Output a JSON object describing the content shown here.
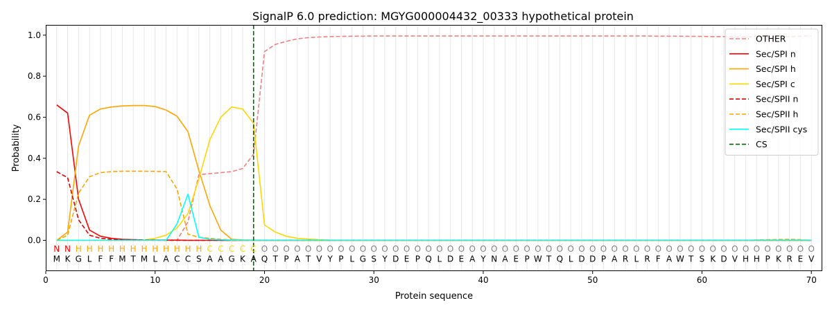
{
  "chart_data": {
    "type": "line",
    "title": "SignalP 6.0 prediction: MGYG000004432_00333 hypothetical protein",
    "xlabel": "Protein sequence",
    "ylabel": "Probability",
    "xlim": [
      0,
      71
    ],
    "ylim": [
      -0.15,
      1.05
    ],
    "x_ticks": [
      0,
      10,
      20,
      30,
      40,
      50,
      60,
      70
    ],
    "y_ticks": [
      0.0,
      0.2,
      0.4,
      0.6,
      0.8,
      1.0
    ],
    "x_tick_labels": [
      "0",
      "10",
      "20",
      "30",
      "40",
      "50",
      "60",
      "70"
    ],
    "y_tick_labels": [
      "0.0",
      "0.2",
      "0.4",
      "0.6",
      "0.8",
      "1.0"
    ],
    "grid": "vertical lines at every residue position",
    "legend_position": "top-right",
    "sequence": [
      "M",
      "K",
      "G",
      "L",
      "F",
      "F",
      "M",
      "T",
      "M",
      "L",
      "A",
      "C",
      "C",
      "S",
      "A",
      "A",
      "G",
      "K",
      "A",
      "Q",
      "T",
      "P",
      "A",
      "T",
      "V",
      "Y",
      "P",
      "L",
      "G",
      "S",
      "Y",
      "D",
      "E",
      "P",
      "Q",
      "L",
      "D",
      "E",
      "A",
      "Y",
      "N",
      "A",
      "E",
      "P",
      "W",
      "T",
      "Q",
      "L",
      "D",
      "D",
      "P",
      "A",
      "R",
      "L",
      "R",
      "F",
      "A",
      "W",
      "T",
      "S",
      "K",
      "D",
      "V",
      "H",
      "H",
      "P",
      "K",
      "R",
      "E",
      "V"
    ],
    "labels": [
      "N",
      "N",
      "H",
      "H",
      "H",
      "H",
      "H",
      "H",
      "H",
      "H",
      "H",
      "H",
      "H",
      "H",
      "C",
      "C",
      "C",
      "C",
      "C",
      "O",
      "O",
      "O",
      "O",
      "O",
      "O",
      "O",
      "O",
      "O",
      "O",
      "O",
      "O",
      "O",
      "O",
      "O",
      "O",
      "O",
      "O",
      "O",
      "O",
      "O",
      "O",
      "O",
      "O",
      "O",
      "O",
      "O",
      "O",
      "O",
      "O",
      "O",
      "O",
      "O",
      "O",
      "O",
      "O",
      "O",
      "O",
      "O",
      "O",
      "O",
      "O",
      "O",
      "O",
      "O",
      "O",
      "O",
      "O",
      "O",
      "O",
      "O"
    ],
    "label_colors": {
      "N": "#ff0000",
      "H": "#ffa500",
      "C": "#ffd700",
      "O": "#808080"
    },
    "cs_position": 19,
    "series": [
      {
        "name": "OTHER",
        "color": "#f08080",
        "dash": "dashed",
        "values": [
          0.0,
          0.0,
          0.0,
          0.0,
          0.0,
          0.0,
          0.0,
          0.0,
          0.0,
          0.0,
          0.0,
          0.0,
          0.09,
          0.32,
          0.325,
          0.33,
          0.335,
          0.35,
          0.42,
          0.92,
          0.955,
          0.97,
          0.982,
          0.988,
          0.991,
          0.993,
          0.994,
          0.995,
          0.995,
          0.996,
          0.996,
          0.996,
          0.996,
          0.996,
          0.996,
          0.996,
          0.996,
          0.996,
          0.996,
          0.996,
          0.996,
          0.996,
          0.996,
          0.996,
          0.996,
          0.996,
          0.996,
          0.996,
          0.996,
          0.996,
          0.996,
          0.996,
          0.996,
          0.996,
          0.996,
          0.995,
          0.995,
          0.995,
          0.994,
          0.994,
          0.993,
          0.993,
          0.992,
          0.992,
          0.991,
          0.991,
          0.991,
          0.993,
          0.995,
          0.996
        ]
      },
      {
        "name": "Sec/SPI n",
        "color": "#ff0000",
        "dash": "solid",
        "values": [
          0.66,
          0.62,
          0.2,
          0.05,
          0.02,
          0.01,
          0.005,
          0.003,
          0.002,
          0.001,
          0.001,
          0.001,
          0.0,
          0.0,
          0.0,
          0.0,
          0.0,
          0.0,
          0.0,
          0.0,
          0.0,
          0.0,
          0.0,
          0.0,
          0.0,
          0.0,
          0.0,
          0.0,
          0.0,
          0.0,
          0.0,
          0.0,
          0.0,
          0.0,
          0.0,
          0.0,
          0.0,
          0.0,
          0.0,
          0.0,
          0.0,
          0.0,
          0.0,
          0.0,
          0.0,
          0.0,
          0.0,
          0.0,
          0.0,
          0.0,
          0.0,
          0.0,
          0.0,
          0.0,
          0.0,
          0.0,
          0.0,
          0.0,
          0.0,
          0.0,
          0.0,
          0.0,
          0.0,
          0.0,
          0.0,
          0.0,
          0.0,
          0.0,
          0.0,
          0.0
        ]
      },
      {
        "name": "Sec/SPI h",
        "color": "#ffa500",
        "dash": "solid",
        "values": [
          0.0,
          0.04,
          0.46,
          0.61,
          0.64,
          0.65,
          0.655,
          0.657,
          0.657,
          0.652,
          0.635,
          0.605,
          0.53,
          0.34,
          0.17,
          0.05,
          0.005,
          0.002,
          0.001,
          0.0,
          0.0,
          0.0,
          0.0,
          0.0,
          0.0,
          0.0,
          0.0,
          0.0,
          0.0,
          0.0,
          0.0,
          0.0,
          0.0,
          0.0,
          0.0,
          0.0,
          0.0,
          0.0,
          0.0,
          0.0,
          0.0,
          0.0,
          0.0,
          0.0,
          0.0,
          0.0,
          0.0,
          0.0,
          0.0,
          0.0,
          0.0,
          0.0,
          0.0,
          0.0,
          0.0,
          0.0,
          0.0,
          0.0,
          0.0,
          0.0,
          0.0,
          0.0,
          0.0,
          0.0,
          0.0,
          0.0,
          0.0,
          0.0,
          0.0,
          0.0
        ]
      },
      {
        "name": "Sec/SPI c",
        "color": "#ffd700",
        "dash": "solid",
        "values": [
          0.0,
          0.0,
          0.0,
          0.0,
          0.0,
          0.0,
          0.0,
          0.0,
          0.002,
          0.01,
          0.025,
          0.06,
          0.13,
          0.3,
          0.49,
          0.6,
          0.65,
          0.64,
          0.57,
          0.075,
          0.04,
          0.02,
          0.01,
          0.006,
          0.003,
          0.001,
          0.0,
          0.0,
          0.0,
          0.0,
          0.0,
          0.0,
          0.0,
          0.0,
          0.0,
          0.0,
          0.0,
          0.0,
          0.0,
          0.0,
          0.0,
          0.0,
          0.0,
          0.0,
          0.0,
          0.0,
          0.0,
          0.0,
          0.0,
          0.0,
          0.0,
          0.0,
          0.0,
          0.0,
          0.0,
          0.0,
          0.0,
          0.0,
          0.0,
          0.0,
          0.0,
          0.0,
          0.0,
          0.0,
          0.0,
          0.0,
          0.0,
          0.0,
          0.0,
          0.0
        ]
      },
      {
        "name": "Sec/SPII n",
        "color": "#dd0000",
        "dash": "dashed",
        "values": [
          0.335,
          0.305,
          0.1,
          0.025,
          0.01,
          0.005,
          0.003,
          0.002,
          0.001,
          0.001,
          0.0,
          0.0,
          0.0,
          0.0,
          0.0,
          0.0,
          0.0,
          0.0,
          0.0,
          0.0,
          0.0,
          0.0,
          0.0,
          0.0,
          0.0,
          0.0,
          0.0,
          0.0,
          0.0,
          0.0,
          0.0,
          0.0,
          0.0,
          0.0,
          0.0,
          0.0,
          0.0,
          0.0,
          0.0,
          0.0,
          0.0,
          0.0,
          0.0,
          0.0,
          0.0,
          0.0,
          0.0,
          0.0,
          0.0,
          0.0,
          0.0,
          0.0,
          0.0,
          0.0,
          0.0,
          0.0,
          0.0,
          0.0,
          0.0,
          0.0,
          0.0,
          0.0,
          0.0,
          0.0,
          0.0,
          0.0,
          0.0,
          0.0,
          0.0,
          0.0
        ]
      },
      {
        "name": "Sec/SPII h",
        "color": "#ffa500",
        "dash": "dashed",
        "values": [
          0.0,
          0.025,
          0.23,
          0.31,
          0.33,
          0.335,
          0.337,
          0.337,
          0.337,
          0.336,
          0.335,
          0.25,
          0.03,
          0.015,
          0.01,
          0.005,
          0.002,
          0.001,
          0.0,
          0.0,
          0.0,
          0.0,
          0.0,
          0.0,
          0.0,
          0.0,
          0.0,
          0.0,
          0.0,
          0.0,
          0.0,
          0.0,
          0.0,
          0.0,
          0.0,
          0.0,
          0.0,
          0.0,
          0.0,
          0.0,
          0.0,
          0.0,
          0.0,
          0.0,
          0.0,
          0.0,
          0.0,
          0.0,
          0.0,
          0.0,
          0.0,
          0.0,
          0.0,
          0.0,
          0.0,
          0.0,
          0.0,
          0.0,
          0.0,
          0.0,
          0.0,
          0.0,
          0.0,
          0.0,
          0.002,
          0.003,
          0.004,
          0.005,
          0.003,
          0.0
        ]
      },
      {
        "name": "Sec/SPII cys",
        "color": "#00ffff",
        "dash": "solid",
        "values": [
          0.0,
          0.0,
          0.0,
          0.0,
          0.0,
          0.0,
          0.0,
          0.0,
          0.0,
          0.0,
          0.0,
          0.08,
          0.225,
          0.015,
          0.005,
          0.003,
          0.001,
          0.0,
          0.0,
          0.0,
          0.0,
          0.0,
          0.0,
          0.0,
          0.0,
          0.0,
          0.0,
          0.0,
          0.0,
          0.0,
          0.0,
          0.0,
          0.0,
          0.0,
          0.0,
          0.0,
          0.0,
          0.0,
          0.0,
          0.0,
          0.0,
          0.0,
          0.0,
          0.0,
          0.0,
          0.0,
          0.0,
          0.0,
          0.0,
          0.0,
          0.0,
          0.0,
          0.0,
          0.0,
          0.0,
          0.0,
          0.0,
          0.0,
          0.0,
          0.0,
          0.0,
          0.0,
          0.0,
          0.0,
          0.0,
          0.0,
          0.0,
          0.0,
          0.0,
          0.0
        ]
      }
    ],
    "cs_legend": {
      "name": "CS",
      "color": "#006400",
      "dash": "dashed"
    }
  }
}
